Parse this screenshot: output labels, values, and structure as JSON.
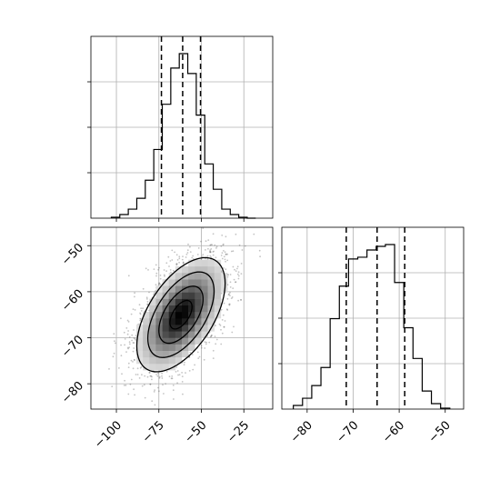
{
  "chart_data": {
    "type": "corner",
    "parameters": 2,
    "histograms": [
      {
        "axis_index": 0,
        "xlim": [
          -115,
          -8
        ],
        "bin_edges": [
          -103,
          -98,
          -93,
          -88,
          -83,
          -78,
          -73,
          -68,
          -63,
          -58,
          -53,
          -48,
          -43,
          -38,
          -33,
          -28,
          -23,
          -18
        ],
        "counts": [
          0.005,
          0.02,
          0.05,
          0.11,
          0.21,
          0.38,
          0.63,
          0.83,
          0.91,
          0.8,
          0.57,
          0.3,
          0.16,
          0.05,
          0.02,
          0.005,
          0.0
        ],
        "quantiles": [
          -73.5,
          -61.0,
          -50.5
        ],
        "xticks": [
          -100,
          -75,
          -50,
          -25
        ]
      },
      {
        "axis_index": 1,
        "xlim": [
          -85.5,
          -46
        ],
        "bin_edges": [
          -83,
          -81,
          -79,
          -77,
          -75,
          -73,
          -71,
          -69,
          -67,
          -65,
          -63,
          -61,
          -59,
          -57,
          -55,
          -53,
          -51,
          -49
        ],
        "counts": [
          0.02,
          0.06,
          0.13,
          0.23,
          0.5,
          0.68,
          0.83,
          0.84,
          0.88,
          0.9,
          0.91,
          0.7,
          0.45,
          0.28,
          0.1,
          0.03,
          0.005
        ],
        "quantiles": [
          -71.5,
          -64.8,
          -58.8
        ],
        "xticks": [
          -80,
          -70,
          -60,
          -50
        ],
        "xticklabels": [
          "−80",
          "−70",
          "−60",
          "−50"
        ]
      }
    ],
    "joint": {
      "x_param": 0,
      "y_param": 1,
      "xlim": [
        -115,
        -8
      ],
      "ylim": [
        -85.5,
        -46
      ],
      "xticks": [
        -100,
        -75,
        -50,
        -25
      ],
      "xticklabels": [
        "−100",
        "−75",
        "−50",
        "−25"
      ],
      "yticks": [
        -50,
        -60,
        -70,
        -80
      ],
      "yticklabels": [
        "−50",
        "−60",
        "−70",
        "−80"
      ],
      "mean": [
        -62,
        -65
      ],
      "sd": [
        13,
        6.2
      ],
      "correlation": 0.55,
      "contour_sigma_levels": [
        0.5,
        1.0,
        1.5,
        2.0
      ],
      "grid": true
    },
    "grid": true
  }
}
